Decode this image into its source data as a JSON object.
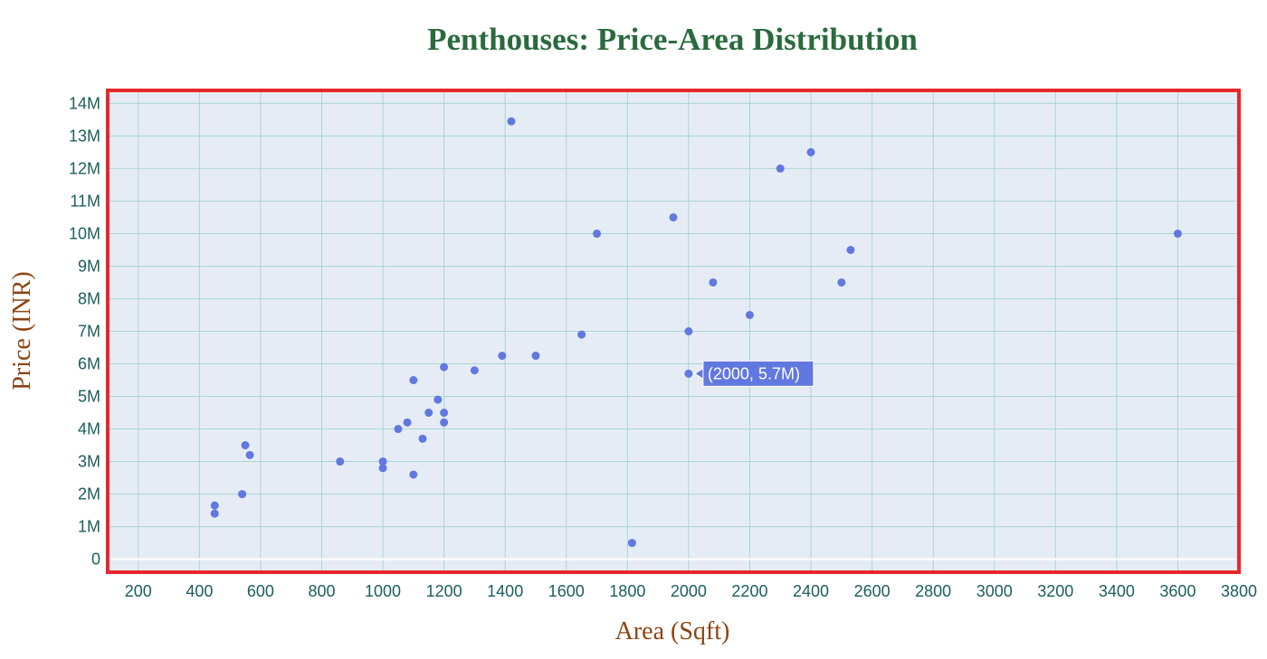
{
  "chart_data": {
    "type": "scatter",
    "title": "Penthouses: Price-Area Distribution",
    "xlabel": "Area (Sqft)",
    "ylabel": "Price (INR)",
    "xlim": [
      100,
      3800
    ],
    "ylim": [
      -400000,
      14400000
    ],
    "x_ticks": [
      200,
      400,
      600,
      800,
      1000,
      1200,
      1400,
      1600,
      1800,
      2000,
      2200,
      2400,
      2600,
      2800,
      3000,
      3200,
      3400,
      3600,
      3800
    ],
    "x_tick_labels": [
      "200",
      "400",
      "600",
      "800",
      "1000",
      "1200",
      "1400",
      "1600",
      "1800",
      "2000",
      "2200",
      "2400",
      "2600",
      "2800",
      "3000",
      "3200",
      "3400",
      "3600",
      "3800"
    ],
    "y_ticks": [
      0,
      1000000,
      2000000,
      3000000,
      4000000,
      5000000,
      6000000,
      7000000,
      8000000,
      9000000,
      10000000,
      11000000,
      12000000,
      13000000,
      14000000
    ],
    "y_tick_labels": [
      "0",
      "1M",
      "2M",
      "3M",
      "4M",
      "5M",
      "6M",
      "7M",
      "8M",
      "9M",
      "10M",
      "11M",
      "12M",
      "13M",
      "14M"
    ],
    "grid": true,
    "points": [
      {
        "x": 450,
        "y": 1650000
      },
      {
        "x": 450,
        "y": 1400000
      },
      {
        "x": 540,
        "y": 2000000
      },
      {
        "x": 550,
        "y": 3500000
      },
      {
        "x": 565,
        "y": 3200000
      },
      {
        "x": 860,
        "y": 3000000
      },
      {
        "x": 1000,
        "y": 3000000
      },
      {
        "x": 1000,
        "y": 2800000
      },
      {
        "x": 1050,
        "y": 4000000
      },
      {
        "x": 1080,
        "y": 4200000
      },
      {
        "x": 1100,
        "y": 5500000
      },
      {
        "x": 1100,
        "y": 2600000
      },
      {
        "x": 1130,
        "y": 3700000
      },
      {
        "x": 1150,
        "y": 4500000
      },
      {
        "x": 1180,
        "y": 4900000
      },
      {
        "x": 1200,
        "y": 5900000
      },
      {
        "x": 1200,
        "y": 4500000
      },
      {
        "x": 1200,
        "y": 4200000
      },
      {
        "x": 1300,
        "y": 5800000
      },
      {
        "x": 1390,
        "y": 6250000
      },
      {
        "x": 1420,
        "y": 13450000
      },
      {
        "x": 1500,
        "y": 6250000
      },
      {
        "x": 1650,
        "y": 6900000
      },
      {
        "x": 1700,
        "y": 10000000
      },
      {
        "x": 1815,
        "y": 500000
      },
      {
        "x": 1950,
        "y": 10500000
      },
      {
        "x": 2000,
        "y": 7000000
      },
      {
        "x": 2000,
        "y": 5700000
      },
      {
        "x": 2080,
        "y": 8500000
      },
      {
        "x": 2200,
        "y": 7500000
      },
      {
        "x": 2300,
        "y": 12000000
      },
      {
        "x": 2400,
        "y": 12500000
      },
      {
        "x": 2500,
        "y": 8500000
      },
      {
        "x": 2530,
        "y": 9500000
      },
      {
        "x": 3600,
        "y": 10000000
      }
    ],
    "hover": {
      "x": 2000,
      "y": 5700000,
      "label": "(2000, 5.7M)"
    },
    "colors": {
      "title": "#2a6b3e",
      "axis_title": "#8b4513",
      "tick_label": "#1b5e5e",
      "marker": "#6178e0",
      "plot_bg": "#e6ecf5",
      "grid": "#a8d5d5",
      "frame": "#e8262b",
      "zero_line": "#ffffff",
      "hover_bg": "#6178e0",
      "hover_text": "#ffffff"
    }
  }
}
